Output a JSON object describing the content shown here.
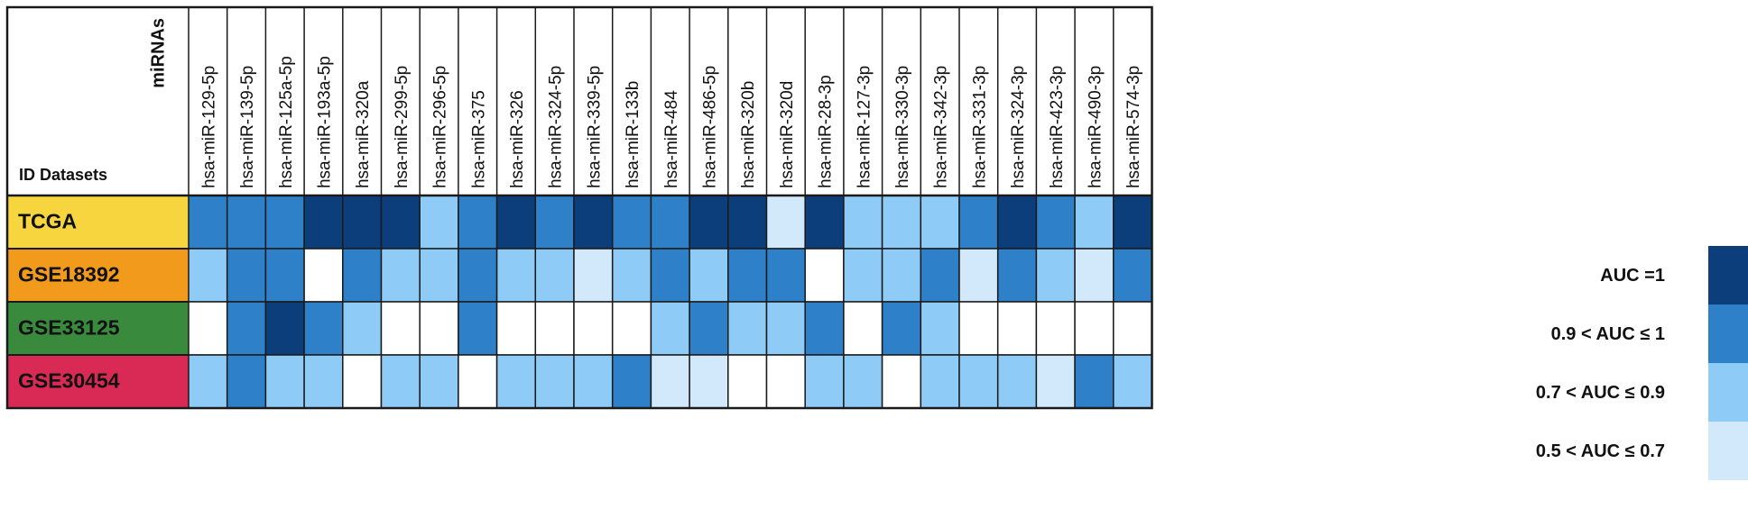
{
  "chart_data": {
    "type": "heatmap",
    "corner_labels": {
      "column_axis": "miRNAs",
      "row_axis": "ID Datasets"
    },
    "columns": [
      "hsa-miR-129-5p",
      "hsa-miR-139-5p",
      "hsa-miR-125a-5p",
      "hsa-miR-193a-5p",
      "hsa-miR-320a",
      "hsa-miR-299-5p",
      "hsa-miR-296-5p",
      "hsa-miR-375",
      "hsa-miR-326",
      "hsa-miR-324-5p",
      "hsa-miR-339-5p",
      "hsa-miR-133b",
      "hsa-miR-484",
      "hsa-miR-486-5p",
      "hsa-miR-320b",
      "hsa-miR-320d",
      "hsa-miR-28-3p",
      "hsa-miR-127-3p",
      "hsa-miR-330-3p",
      "hsa-miR-342-3p",
      "hsa-miR-331-3p",
      "hsa-miR-324-3p",
      "hsa-miR-423-3p",
      "hsa-miR-490-3p",
      "hsa-miR-574-3p"
    ],
    "rows": [
      {
        "name": "TCGA",
        "color": "#f7d53e",
        "values": [
          2,
          2,
          2,
          1,
          1,
          1,
          3,
          2,
          1,
          2,
          1,
          2,
          2,
          1,
          1,
          4,
          1,
          3,
          3,
          3,
          2,
          1,
          2,
          3,
          1
        ]
      },
      {
        "name": "GSE18392",
        "color": "#f29a1b",
        "values": [
          3,
          2,
          2,
          0,
          2,
          3,
          3,
          2,
          3,
          3,
          4,
          3,
          2,
          3,
          2,
          2,
          0,
          3,
          3,
          2,
          4,
          2,
          3,
          4,
          2
        ]
      },
      {
        "name": "GSE33125",
        "color": "#3a8a3e",
        "values": [
          0,
          2,
          1,
          2,
          3,
          0,
          0,
          2,
          0,
          0,
          0,
          0,
          3,
          2,
          3,
          3,
          2,
          0,
          2,
          3,
          0,
          0,
          0,
          0,
          0
        ]
      },
      {
        "name": "GSE30454",
        "color": "#d92a55",
        "values": [
          3,
          2,
          3,
          3,
          0,
          3,
          3,
          0,
          3,
          3,
          3,
          2,
          4,
          4,
          0,
          0,
          3,
          3,
          0,
          3,
          3,
          3,
          4,
          2,
          3
        ]
      }
    ],
    "legend": [
      {
        "level": 1,
        "label": "AUC =1",
        "color": "#0c3e7c"
      },
      {
        "level": 2,
        "label": "0.9 < AUC ≤ 1",
        "color": "#2e80c8"
      },
      {
        "level": 3,
        "label": "0.7 < AUC ≤ 0.9",
        "color": "#8ecbf7"
      },
      {
        "level": 4,
        "label": "0.5 < AUC ≤ 0.7",
        "color": "#d2e9fc"
      }
    ],
    "empty_color": "#ffffff"
  }
}
